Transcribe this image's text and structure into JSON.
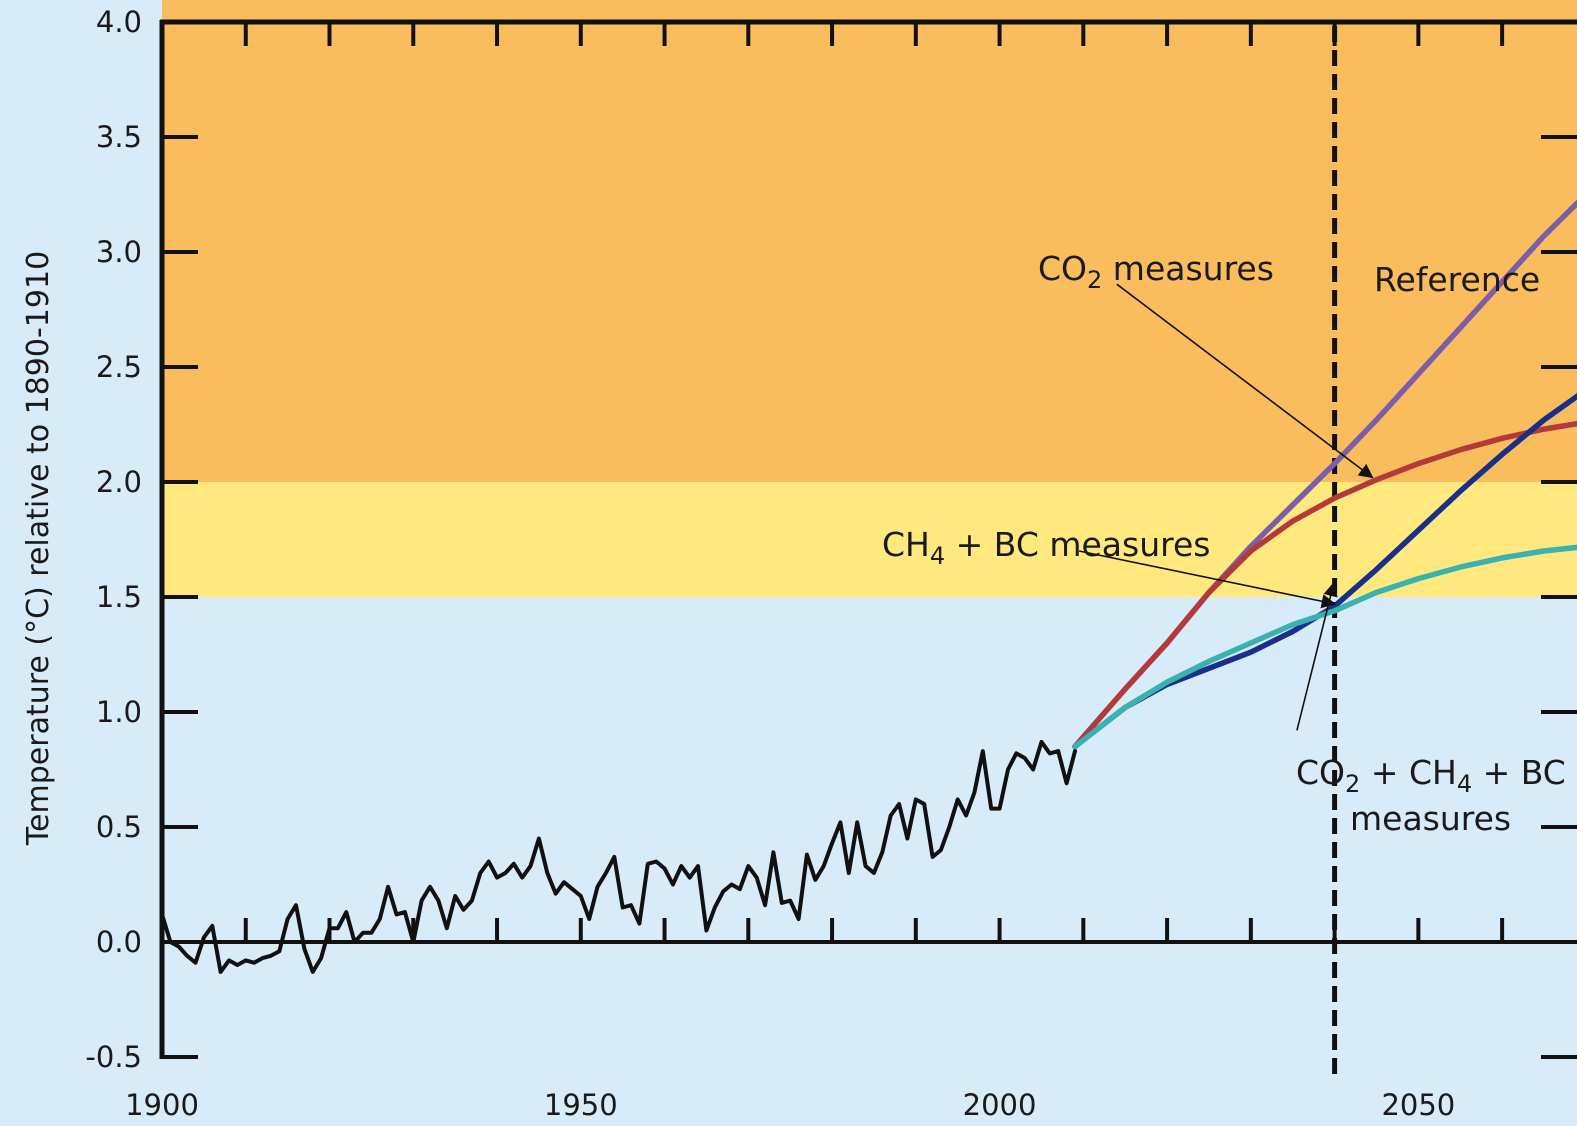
{
  "chart_data": {
    "type": "line",
    "title": "",
    "xlabel": "",
    "ylabel": "Temperature (°C) relative to 1890-1910",
    "xlim": [
      1900,
      2070
    ],
    "ylim": [
      -0.5,
      4.0
    ],
    "x_ticks": [
      "1900",
      "1950",
      "2000",
      "2050"
    ],
    "y_ticks": [
      "4.0",
      "3.5",
      "3.0",
      "2.5",
      "2.0",
      "1.5",
      "1.0",
      "0.5",
      "0.0",
      "-0.5"
    ],
    "bands": [
      {
        "from": 2.0,
        "to": 4.0,
        "color": "#f9bd5e"
      },
      {
        "from": 1.5,
        "to": 2.0,
        "color": "#ffe97f"
      },
      {
        "from": -0.5,
        "to": 1.5,
        "color": "#d8ebf8"
      }
    ],
    "vline_x": 2040,
    "series": [
      {
        "color": "#111111",
        "points": [
          [
            1900,
            0.12
          ],
          [
            1901,
            0.0
          ],
          [
            1902,
            -0.02
          ],
          [
            1903,
            -0.06
          ],
          [
            1904,
            -0.09
          ],
          [
            1905,
            0.02
          ],
          [
            1906,
            0.07
          ],
          [
            1907,
            -0.13
          ],
          [
            1908,
            -0.08
          ],
          [
            1909,
            -0.1
          ],
          [
            1910,
            -0.08
          ],
          [
            1911,
            -0.09
          ],
          [
            1912,
            -0.07
          ],
          [
            1913,
            -0.06
          ],
          [
            1914,
            -0.04
          ],
          [
            1915,
            0.1
          ],
          [
            1916,
            0.16
          ],
          [
            1917,
            -0.03
          ],
          [
            1918,
            -0.13
          ],
          [
            1919,
            -0.07
          ],
          [
            1920,
            0.06
          ],
          [
            1921,
            0.06
          ],
          [
            1922,
            0.13
          ],
          [
            1923,
            0.0
          ],
          [
            1924,
            0.04
          ],
          [
            1925,
            0.04
          ],
          [
            1926,
            0.1
          ],
          [
            1927,
            0.24
          ],
          [
            1928,
            0.12
          ],
          [
            1929,
            0.13
          ],
          [
            1930,
            0.0
          ],
          [
            1931,
            0.18
          ],
          [
            1932,
            0.24
          ],
          [
            1933,
            0.18
          ],
          [
            1934,
            0.06
          ],
          [
            1935,
            0.2
          ],
          [
            1936,
            0.14
          ],
          [
            1937,
            0.18
          ],
          [
            1938,
            0.3
          ],
          [
            1939,
            0.35
          ],
          [
            1940,
            0.28
          ],
          [
            1941,
            0.3
          ],
          [
            1942,
            0.34
          ],
          [
            1943,
            0.28
          ],
          [
            1944,
            0.33
          ],
          [
            1945,
            0.45
          ],
          [
            1946,
            0.3
          ],
          [
            1947,
            0.21
          ],
          [
            1948,
            0.26
          ],
          [
            1949,
            0.23
          ],
          [
            1950,
            0.2
          ],
          [
            1951,
            0.1
          ],
          [
            1952,
            0.24
          ],
          [
            1953,
            0.3
          ],
          [
            1954,
            0.37
          ],
          [
            1955,
            0.15
          ],
          [
            1956,
            0.16
          ],
          [
            1957,
            0.08
          ],
          [
            1958,
            0.34
          ],
          [
            1959,
            0.35
          ],
          [
            1960,
            0.32
          ],
          [
            1961,
            0.25
          ],
          [
            1962,
            0.33
          ],
          [
            1963,
            0.28
          ],
          [
            1964,
            0.33
          ],
          [
            1965,
            0.05
          ],
          [
            1966,
            0.15
          ],
          [
            1967,
            0.22
          ],
          [
            1968,
            0.25
          ],
          [
            1969,
            0.23
          ],
          [
            1970,
            0.33
          ],
          [
            1971,
            0.28
          ],
          [
            1972,
            0.16
          ],
          [
            1973,
            0.39
          ],
          [
            1974,
            0.17
          ],
          [
            1975,
            0.18
          ],
          [
            1976,
            0.1
          ],
          [
            1977,
            0.38
          ],
          [
            1978,
            0.27
          ],
          [
            1979,
            0.33
          ],
          [
            1980,
            0.43
          ],
          [
            1981,
            0.52
          ],
          [
            1982,
            0.3
          ],
          [
            1983,
            0.52
          ],
          [
            1984,
            0.33
          ],
          [
            1985,
            0.3
          ],
          [
            1986,
            0.39
          ],
          [
            1987,
            0.55
          ],
          [
            1988,
            0.6
          ],
          [
            1989,
            0.45
          ],
          [
            1990,
            0.62
          ],
          [
            1991,
            0.6
          ],
          [
            1992,
            0.37
          ],
          [
            1993,
            0.4
          ],
          [
            1994,
            0.5
          ],
          [
            1995,
            0.62
          ],
          [
            1996,
            0.55
          ],
          [
            1997,
            0.65
          ],
          [
            1998,
            0.83
          ],
          [
            1999,
            0.58
          ],
          [
            2000,
            0.58
          ],
          [
            2001,
            0.75
          ],
          [
            2002,
            0.82
          ],
          [
            2003,
            0.8
          ],
          [
            2004,
            0.75
          ],
          [
            2005,
            0.87
          ],
          [
            2006,
            0.82
          ],
          [
            2007,
            0.83
          ],
          [
            2008,
            0.69
          ],
          [
            2009,
            0.83
          ]
        ]
      },
      {
        "name": "Reference",
        "color": "#7c5ea8",
        "points": [
          [
            2009,
            0.85
          ],
          [
            2015,
            1.1
          ],
          [
            2020,
            1.3
          ],
          [
            2025,
            1.52
          ],
          [
            2030,
            1.72
          ],
          [
            2035,
            1.9
          ],
          [
            2040,
            2.08
          ],
          [
            2045,
            2.27
          ],
          [
            2050,
            2.47
          ],
          [
            2055,
            2.67
          ],
          [
            2060,
            2.87
          ],
          [
            2065,
            3.07
          ],
          [
            2070,
            3.25
          ]
        ]
      },
      {
        "name": "CO2 measures",
        "color": "#b23a3a",
        "points": [
          [
            2009,
            0.85
          ],
          [
            2015,
            1.1
          ],
          [
            2020,
            1.3
          ],
          [
            2025,
            1.52
          ],
          [
            2030,
            1.7
          ],
          [
            2035,
            1.83
          ],
          [
            2040,
            1.93
          ],
          [
            2045,
            2.01
          ],
          [
            2050,
            2.08
          ],
          [
            2055,
            2.14
          ],
          [
            2060,
            2.19
          ],
          [
            2065,
            2.23
          ],
          [
            2070,
            2.26
          ]
        ]
      },
      {
        "name": "CH4 + BC measures",
        "color": "#3ab3b0",
        "points": [
          [
            2009,
            0.85
          ],
          [
            2015,
            1.02
          ],
          [
            2020,
            1.13
          ],
          [
            2025,
            1.22
          ],
          [
            2030,
            1.3
          ],
          [
            2035,
            1.38
          ],
          [
            2040,
            1.44
          ],
          [
            2045,
            1.52
          ],
          [
            2050,
            1.58
          ],
          [
            2055,
            1.63
          ],
          [
            2060,
            1.67
          ],
          [
            2065,
            1.7
          ],
          [
            2070,
            1.72
          ]
        ]
      },
      {
        "name": "CO2 + CH4 + BC measures",
        "color": "#1a2f8a",
        "points": [
          [
            2009,
            0.85
          ],
          [
            2015,
            1.02
          ],
          [
            2020,
            1.12
          ],
          [
            2025,
            1.19
          ],
          [
            2030,
            1.26
          ],
          [
            2035,
            1.35
          ],
          [
            2040,
            1.46
          ],
          [
            2045,
            1.62
          ],
          [
            2050,
            1.79
          ],
          [
            2055,
            1.96
          ],
          [
            2060,
            2.12
          ],
          [
            2065,
            2.27
          ],
          [
            2070,
            2.4
          ]
        ]
      }
    ],
    "annotations": [
      {
        "parts": [
          "CO",
          "2",
          " measures"
        ],
        "line": "co2-measures",
        "arrow_from": [
          2014,
          2.86
        ],
        "arrow_to": [
          2044.5,
          2.02
        ]
      },
      {
        "parts": [
          "Reference"
        ],
        "line": "reference"
      },
      {
        "parts": [
          "CH",
          "4",
          " + BC measures"
        ],
        "line": "ch4-bc-measures",
        "arrow_from": [
          2009.5,
          1.7
        ],
        "arrow_to": [
          2040,
          1.47
        ]
      },
      {
        "parts": [
          "CO",
          "2",
          " + CH",
          "4",
          " + BC"
        ],
        "line": "combined-measures",
        "arrow_from": [
          2035.5,
          0.92
        ],
        "arrow_to": [
          2039.9,
          1.56
        ]
      },
      {
        "parts": [
          "measures"
        ],
        "line": "combined-measures"
      }
    ]
  }
}
